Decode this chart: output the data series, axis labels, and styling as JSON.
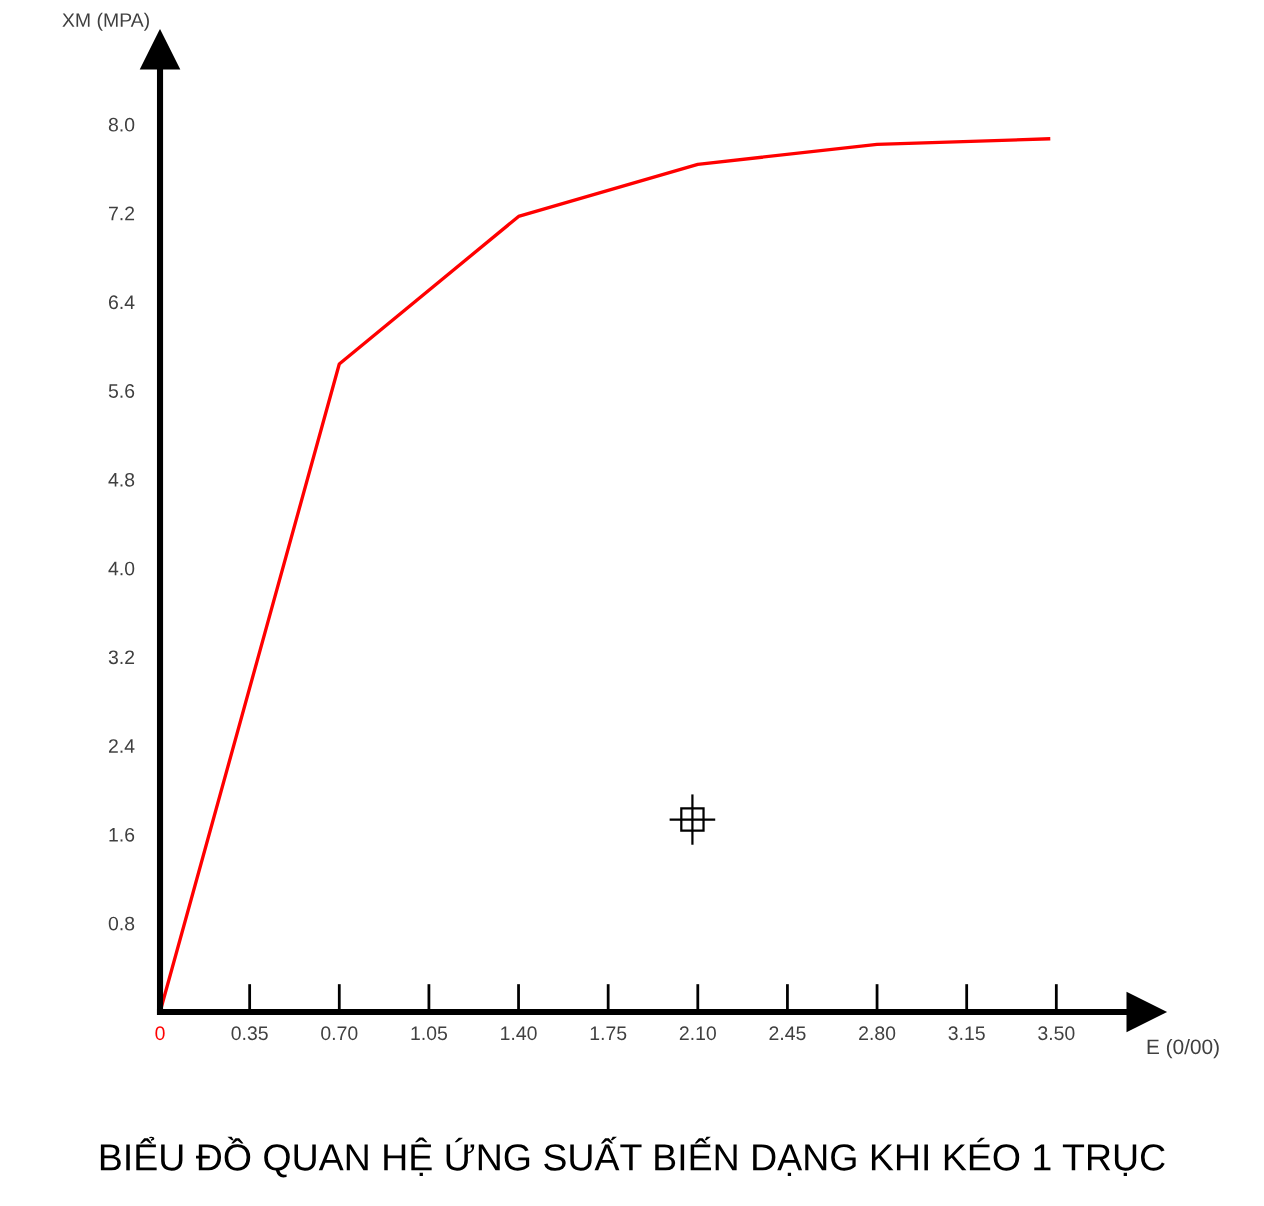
{
  "chart_data": {
    "type": "line",
    "title": "BIỂU ĐỒ QUAN HỆ ỨNG SUẤT BIẾN DẠNG KHI KÉO 1 TRỤC",
    "xlabel": "E (0/00)",
    "ylabel": "XM (MPA)",
    "x": [
      0,
      0.7,
      1.4,
      2.1,
      2.8,
      3.47
    ],
    "series": [
      {
        "color": "#ff0000",
        "values": [
          0,
          5.84,
          7.17,
          7.64,
          7.82,
          7.87
        ]
      }
    ],
    "xlim": [
      0,
      3.85
    ],
    "ylim": [
      0,
      8.67
    ],
    "xticks": [
      0,
      0.35,
      {
        "value": 0.7,
        "label": "0.70"
      },
      1.05,
      {
        "value": 1.4,
        "label": "1.40"
      },
      1.75,
      {
        "value": 2.1,
        "label": "2.10"
      },
      2.45,
      {
        "value": 2.8,
        "label": "2.80"
      },
      3.15,
      {
        "value": 3.5,
        "label": "3.50"
      }
    ],
    "yticks": [
      0.8,
      1.6,
      2.4,
      3.2,
      {
        "value": 4,
        "label": "4.0"
      },
      4.8,
      5.6,
      6.4,
      7.2,
      {
        "value": 8,
        "label": "8.0"
      }
    ],
    "grid": false,
    "legend": false,
    "marker": "none",
    "line_style": "solid"
  }
}
